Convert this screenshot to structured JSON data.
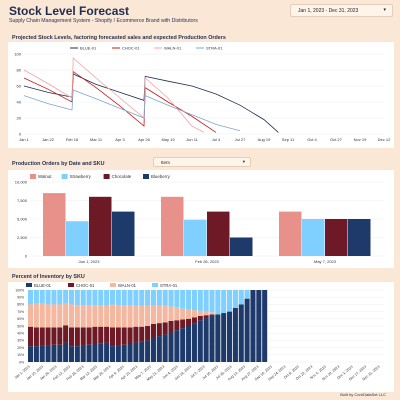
{
  "header": {
    "title": "Stock Level Forecast",
    "subtitle": "Supply Chain Management System - Shopify / Ecommerce Brand with Distributors",
    "date_range": "Jan 1, 2023 - Dec 31, 2023"
  },
  "colors": {
    "page_bg": "#fbe7d6",
    "navy": "#1f2d4f",
    "walnut": "#e8918a",
    "strawberry": "#7fcfff",
    "chocolate": "#6e1a26",
    "blueberry": "#1d3a6b",
    "red_line": "#c41919",
    "pink_line": "#f4a3a3"
  },
  "stock_chart": {
    "title": "Projected Stock Levels, factoring forecasted sales and expected Production Orders"
  },
  "orders_chart": {
    "title": "Production Orders by Date and SKU",
    "dropdown_value": "Item"
  },
  "inventory_chart": {
    "title": "Percent of Inventory by SKU"
  },
  "footer": "Built by CoreDataSet LLC",
  "chart_data": [
    {
      "type": "line",
      "title": "Projected Stock Levels, factoring forecasted sales and expected Production Orders",
      "ylim": [
        0,
        100
      ],
      "yticks": [
        "0",
        "20",
        "40",
        "60",
        "80",
        "100"
      ],
      "xticks": [
        "Jan 1",
        "Jan 22",
        "Feb 16",
        "Mar 11",
        "Apr 3",
        "Apr 26",
        "May 19",
        "Jun 11",
        "Jul 4",
        "Jul 27",
        "Aug 19",
        "Sep 11",
        "Oct 4",
        "Oct 27",
        "Nov 19",
        "Dec 12"
      ],
      "series": [
        {
          "name": "BLUE-01",
          "color": "#1f2d4f",
          "points": [
            [
              0,
              60
            ],
            [
              1,
              52
            ],
            [
              2,
              46
            ],
            [
              2.05,
              75
            ],
            [
              3,
              62
            ],
            [
              4,
              52
            ],
            [
              5,
              42
            ],
            [
              5.05,
              72
            ],
            [
              6,
              66
            ],
            [
              7,
              60
            ],
            [
              8,
              50
            ],
            [
              9,
              36
            ],
            [
              10,
              18
            ],
            [
              10.6,
              2
            ]
          ]
        },
        {
          "name": "CHOC-01",
          "color": "#c41919",
          "points": [
            [
              0,
              70
            ],
            [
              1,
              56
            ],
            [
              2,
              40
            ],
            [
              2.05,
              78
            ],
            [
              3,
              58
            ],
            [
              4,
              35
            ],
            [
              5,
              10
            ],
            [
              5.05,
              58
            ],
            [
              6,
              40
            ],
            [
              7,
              22
            ],
            [
              8,
              2
            ]
          ]
        },
        {
          "name": "WALN-01",
          "color": "#f4a3a3",
          "points": [
            [
              0,
              80
            ],
            [
              1,
              63
            ],
            [
              2,
              45
            ],
            [
              2.05,
              95
            ],
            [
              3,
              70
            ],
            [
              4,
              45
            ],
            [
              5,
              20
            ],
            [
              5.05,
              70
            ],
            [
              6,
              45
            ],
            [
              7,
              10
            ],
            [
              7.5,
              2
            ]
          ]
        },
        {
          "name": "STRA-01",
          "color": "#7fa8c9",
          "points": [
            [
              0,
              48
            ],
            [
              1,
              38
            ],
            [
              2,
              30
            ],
            [
              2.05,
              55
            ],
            [
              3,
              44
            ],
            [
              4,
              32
            ],
            [
              5,
              20
            ],
            [
              5.05,
              48
            ],
            [
              6,
              36
            ],
            [
              7,
              24
            ],
            [
              8,
              12
            ],
            [
              9,
              4
            ]
          ]
        }
      ]
    },
    {
      "type": "bar",
      "title": "Production Orders by Date and SKU",
      "ylim": [
        0,
        10000
      ],
      "yticks": [
        "0",
        "2,500",
        "5,000",
        "7,500",
        "10,000"
      ],
      "categories": [
        "Jan 1, 2023",
        "Feb 26, 2023",
        "May 7, 2023"
      ],
      "series": [
        {
          "name": "Walnut",
          "color": "#e8918a",
          "values": [
            8500,
            8000,
            6000
          ]
        },
        {
          "name": "Strawberry",
          "color": "#7fcfff",
          "values": [
            4700,
            4900,
            5000
          ]
        },
        {
          "name": "Chocolate",
          "color": "#6e1a26",
          "values": [
            8000,
            6000,
            5000
          ]
        },
        {
          "name": "Blueberry",
          "color": "#1d3a6b",
          "values": [
            6000,
            2500,
            5000
          ]
        }
      ]
    },
    {
      "type": "bar",
      "stacked": true,
      "title": "Percent of Inventory by SKU",
      "ylim": [
        0,
        100
      ],
      "yticks": [
        "0%",
        "10%",
        "20%",
        "30%",
        "40%",
        "50%",
        "60%",
        "70%",
        "80%",
        "90%",
        "100%"
      ],
      "xticks": [
        "Jan 1, 2023",
        "Jan 15, 2023",
        "Jan 29, 2023",
        "Feb 12, 2023",
        "Feb 26, 2023",
        "Mar 12, 2023",
        "Mar 26, 2023",
        "Apr 9, 2023",
        "Apr 23, 2023",
        "May 7, 2023",
        "May 21, 2023",
        "Jun 4, 2023",
        "Jun 18, 2023",
        "Jul 2, 2023",
        "Jul 16, 2023",
        "Jul 30, 2023",
        "Aug 13, 2023",
        "Aug 27, 2023",
        "Sep 10, 2023",
        "Sep 24, 2023",
        "Oct 8, 2023",
        "Oct 22, 2023",
        "Nov 5, 2023",
        "Nov 19, 2023",
        "Dec 3, 2023",
        "Dec 17, 2023",
        "Dec 31, 2023"
      ],
      "series_names": [
        "BLUE-01",
        "CHOC-01",
        "WALN-01",
        "STRA-01"
      ],
      "series_colors": [
        "#1d3a6b",
        "#6e1a26",
        "#f4b7a0",
        "#7fcfff"
      ],
      "bars": [
        [
          22,
          27,
          31,
          20
        ],
        [
          22,
          26,
          33,
          19
        ],
        [
          23,
          25,
          33,
          19
        ],
        [
          23,
          25,
          32,
          20
        ],
        [
          24,
          24,
          32,
          20
        ],
        [
          24,
          24,
          32,
          20
        ],
        [
          27,
          24,
          31,
          18
        ],
        [
          22,
          26,
          32,
          20
        ],
        [
          22,
          26,
          31,
          21
        ],
        [
          23,
          25,
          31,
          21
        ],
        [
          24,
          24,
          31,
          21
        ],
        [
          25,
          24,
          30,
          21
        ],
        [
          26,
          23,
          30,
          21
        ],
        [
          27,
          22,
          29,
          22
        ],
        [
          22,
          26,
          32,
          20
        ],
        [
          23,
          25,
          31,
          21
        ],
        [
          24,
          24,
          31,
          21
        ],
        [
          25,
          23,
          30,
          22
        ],
        [
          27,
          22,
          29,
          22
        ],
        [
          28,
          21,
          29,
          22
        ],
        [
          30,
          20,
          28,
          22
        ],
        [
          34,
          19,
          25,
          22
        ],
        [
          36,
          18,
          24,
          22
        ],
        [
          38,
          17,
          23,
          22
        ],
        [
          41,
          16,
          20,
          23
        ],
        [
          44,
          14,
          18,
          24
        ],
        [
          47,
          12,
          15,
          26
        ],
        [
          50,
          10,
          13,
          27
        ],
        [
          54,
          8,
          10,
          28
        ],
        [
          58,
          6,
          7,
          29
        ],
        [
          61,
          4,
          5,
          30
        ],
        [
          64,
          2,
          3,
          31
        ],
        [
          66,
          0,
          0,
          34
        ],
        [
          68,
          0,
          0,
          32
        ],
        [
          70,
          0,
          0,
          30
        ],
        [
          75,
          0,
          0,
          25
        ],
        [
          80,
          0,
          0,
          20
        ],
        [
          88,
          0,
          0,
          12
        ],
        [
          100,
          0,
          0,
          0
        ],
        [
          100,
          0,
          0,
          0
        ],
        [
          100,
          0,
          0,
          0
        ]
      ]
    }
  ]
}
